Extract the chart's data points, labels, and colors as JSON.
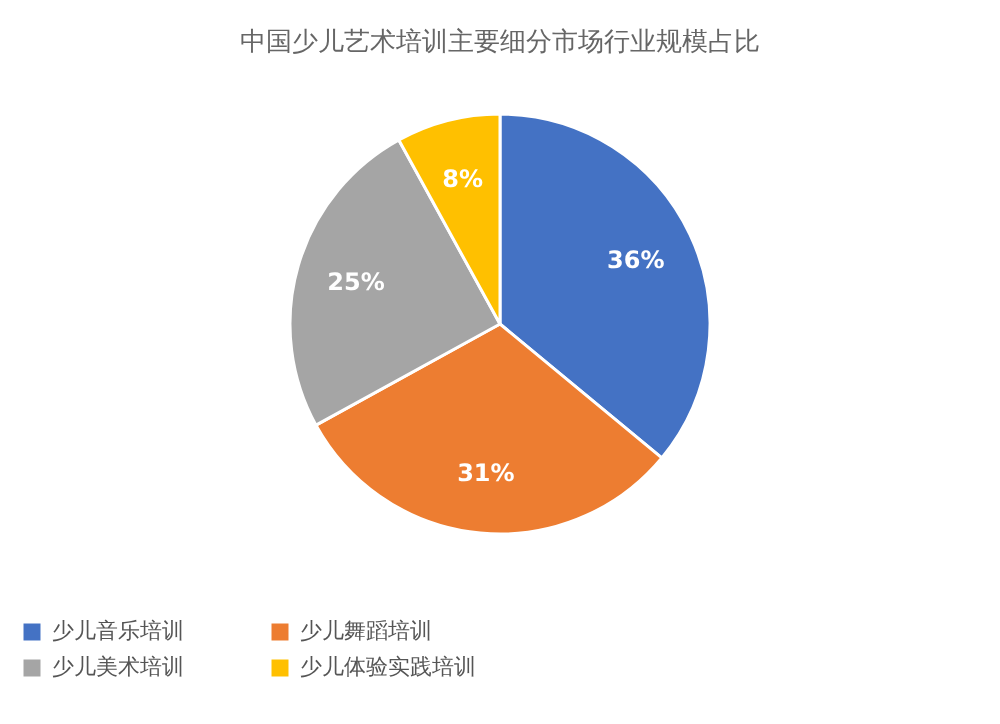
{
  "chart_data": {
    "type": "pie",
    "title": "中国少儿艺术培训主要细分市场行业规模占比",
    "categories": [
      "少儿音乐培训",
      "少儿舞蹈培训",
      "少儿美术培训",
      "少儿体验实践培训"
    ],
    "values": [
      36,
      31,
      25,
      8
    ],
    "colors": [
      "#4472c4",
      "#ed7d31",
      "#a5a5a5",
      "#ffc000"
    ],
    "value_labels": [
      "36%",
      "31%",
      "25%",
      "8%"
    ],
    "legend": "bottom"
  }
}
